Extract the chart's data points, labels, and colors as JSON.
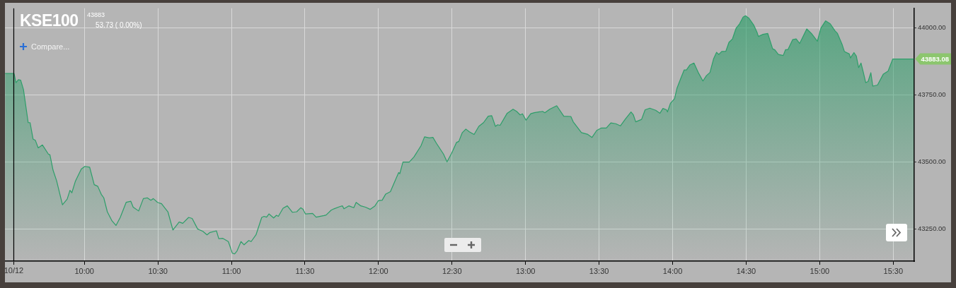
{
  "chart_data": {
    "type": "area",
    "title": "KSE100",
    "annotations": [
      "43883",
      "53.73 ( 0.00%)",
      "Compare...",
      {
        "text": "43883.08",
        "x": 15.64,
        "y": 43883.08
      }
    ],
    "x": [
      9.461,
      9.522,
      9.535,
      9.551,
      9.567,
      9.586,
      9.618,
      9.631,
      9.651,
      9.667,
      9.686,
      9.715,
      9.755,
      9.766,
      9.787,
      9.811,
      9.851,
      9.883,
      9.902,
      9.915,
      9.939,
      9.979,
      10.003,
      10.036,
      10.067,
      10.091,
      10.115,
      10.132,
      10.156,
      10.188,
      10.215,
      10.244,
      10.284,
      10.316,
      10.332,
      10.369,
      10.401,
      10.428,
      10.452,
      10.469,
      10.498,
      10.525,
      10.549,
      10.568,
      10.602,
      10.645,
      10.669,
      10.709,
      10.733,
      10.77,
      10.806,
      10.834,
      10.854,
      10.898,
      10.914,
      10.942,
      10.979,
      11.006,
      11.022,
      11.038,
      11.065,
      11.086,
      11.118,
      11.134,
      11.167,
      11.206,
      11.222,
      11.239,
      11.255,
      11.287,
      11.306,
      11.319,
      11.351,
      11.38,
      11.415,
      11.444,
      11.471,
      11.487,
      11.503,
      11.552,
      11.576,
      11.63,
      11.644,
      11.678,
      11.697,
      11.736,
      11.755,
      11.765,
      11.798,
      11.832,
      11.848,
      11.88,
      11.912,
      11.944,
      11.976,
      12.0,
      12.025,
      12.049,
      12.081,
      12.113,
      12.137,
      12.145,
      12.166,
      12.209,
      12.241,
      12.273,
      12.289,
      12.313,
      12.346,
      12.37,
      12.394,
      12.442,
      12.466,
      12.498,
      12.53,
      12.546,
      12.57,
      12.594,
      12.618,
      12.65,
      12.682,
      12.714,
      12.746,
      12.77,
      12.795,
      12.81,
      12.827,
      12.875,
      12.915,
      12.939,
      12.963,
      12.979,
      13.003,
      13.035,
      13.059,
      13.116,
      13.131,
      13.164,
      13.212,
      13.26,
      13.308,
      13.324,
      13.38,
      13.42,
      13.452,
      13.484,
      13.516,
      13.549,
      13.58,
      13.613,
      13.645,
      13.677,
      13.717,
      13.733,
      13.749,
      13.789,
      13.813,
      13.845,
      13.885,
      13.914,
      13.934,
      13.958,
      13.965,
      13.985,
      14.013,
      14.03,
      14.054,
      14.078,
      14.094,
      14.118,
      14.145,
      14.174,
      14.206,
      14.23,
      14.254,
      14.278,
      14.299,
      14.314,
      14.334,
      14.362,
      14.383,
      14.407,
      14.431,
      14.455,
      14.479,
      14.495,
      14.519,
      14.551,
      14.575,
      14.583,
      14.615,
      14.647,
      14.68,
      14.695,
      14.719,
      14.752,
      14.768,
      14.784,
      14.816,
      14.84,
      14.864,
      14.912,
      14.944,
      14.984,
      15.008,
      15.04,
      15.072,
      15.104,
      15.12,
      15.152,
      15.168,
      15.201,
      15.209,
      15.233,
      15.249,
      15.265,
      15.281,
      15.297,
      15.313,
      15.329,
      15.348,
      15.361,
      15.393,
      15.433,
      15.465,
      15.497,
      15.64
    ],
    "series": [
      {
        "color": "#2e9e6a",
        "values": [
          43829,
          43829,
          43795,
          43806,
          43804,
          43769,
          43646,
          43646,
          43585,
          43580,
          43552,
          43563,
          43529,
          43526,
          43469,
          43430,
          43340,
          43361,
          43394,
          43385,
          43428,
          43473,
          43483,
          43480,
          43415,
          43409,
          43379,
          43366,
          43314,
          43280,
          43263,
          43293,
          43349,
          43353,
          43331,
          43317,
          43363,
          43366,
          43357,
          43363,
          43349,
          43344,
          43327,
          43314,
          43246,
          43276,
          43271,
          43293,
          43289,
          43250,
          43241,
          43228,
          43237,
          43243,
          43214,
          43215,
          43203,
          43160,
          43157,
          43168,
          43203,
          43191,
          43207,
          43203,
          43228,
          43293,
          43297,
          43294,
          43306,
          43291,
          43301,
          43297,
          43327,
          43336,
          43312,
          43314,
          43329,
          43323,
          43306,
          43308,
          43294,
          43300,
          43302,
          43320,
          43325,
          43333,
          43336,
          43325,
          43336,
          43329,
          43349,
          43336,
          43331,
          43323,
          43336,
          43356,
          43357,
          43380,
          43389,
          43430,
          43460,
          43456,
          43499,
          43499,
          43518,
          43546,
          43560,
          43593,
          43589,
          43591,
          43569,
          43529,
          43500,
          43533,
          43572,
          43576,
          43609,
          43622,
          43612,
          43602,
          43632,
          43646,
          43670,
          43672,
          43632,
          43638,
          43636,
          43681,
          43696,
          43688,
          43675,
          43679,
          43655,
          43679,
          43683,
          43688,
          43683,
          43696,
          43709,
          43670,
          43669,
          43649,
          43609,
          43603,
          43591,
          43617,
          43626,
          43626,
          43645,
          43642,
          43634,
          43658,
          43686,
          43675,
          43649,
          43658,
          43694,
          43700,
          43692,
          43681,
          43699,
          43694,
          43686,
          43718,
          43735,
          43775,
          43809,
          43842,
          43842,
          43861,
          43868,
          43833,
          43801,
          43821,
          43833,
          43883,
          43908,
          43900,
          43911,
          43912,
          43945,
          43958,
          43997,
          44014,
          44039,
          44044,
          44035,
          44010,
          43981,
          43967,
          43975,
          43978,
          43921,
          43917,
          43900,
          43896,
          43918,
          43918,
          43955,
          43958,
          43941,
          43995,
          43978,
          43949,
          43998,
          44025,
          44014,
          43988,
          43979,
          43938,
          43911,
          43902,
          43887,
          43907,
          43894,
          43851,
          43868,
          43833,
          43795,
          43799,
          43832,
          43782,
          43786,
          43827,
          43838,
          43883,
          43883
        ]
      }
    ],
    "xlim": [
      9.46,
      15.643
    ],
    "xticks": [
      {
        "value": 9.52,
        "label": null
      },
      {
        "value": 10,
        "label": "10:00"
      },
      {
        "value": 10.5,
        "label": "10:30"
      },
      {
        "value": 11,
        "label": "11:00"
      },
      {
        "value": 11.5,
        "label": "11:30"
      },
      {
        "value": 12,
        "label": "12:00"
      },
      {
        "value": 12.5,
        "label": "12:30"
      },
      {
        "value": 13,
        "label": "13:00"
      },
      {
        "value": 13.5,
        "label": "13:30"
      },
      {
        "value": 14,
        "label": "14:00"
      },
      {
        "value": 14.5,
        "label": "14:30"
      },
      {
        "value": 15,
        "label": "15:00"
      },
      {
        "value": 15.5,
        "label": "15:30"
      }
    ],
    "ylim": [
      43130,
      44072
    ],
    "yticks": [
      {
        "value": 43250,
        "label": "43250.00"
      },
      {
        "value": 43500,
        "label": "43500.00"
      },
      {
        "value": 43750,
        "label": "43750.00"
      },
      {
        "value": 44000,
        "label": "44000.00"
      }
    ],
    "ref_lines": [
      {
        "axis": "x",
        "value": 9.52,
        "label": "10/12",
        "color": "#000000"
      }
    ],
    "grid": true,
    "legend": false,
    "marker": "none",
    "line_style": "solid"
  }
}
